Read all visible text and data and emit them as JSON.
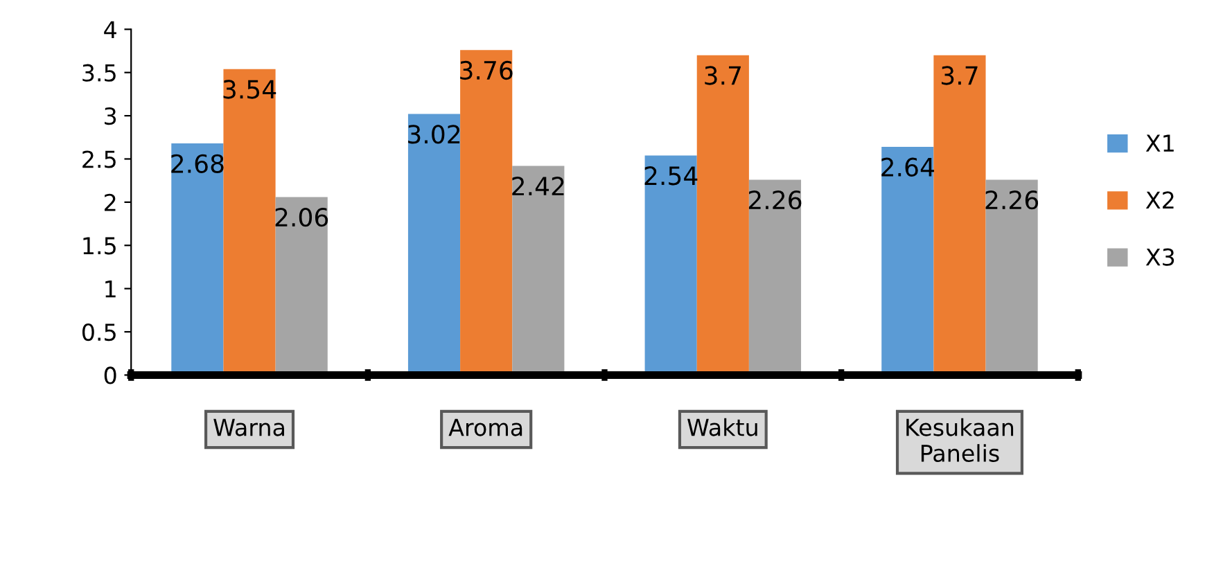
{
  "chart_data": {
    "type": "bar",
    "categories": [
      "Warna",
      "Aroma",
      "Waktu",
      "Kesukaan\nPanelis"
    ],
    "series": [
      {
        "name": "X1",
        "color": "#5b9bd5",
        "values": [
          2.68,
          3.02,
          2.54,
          2.64
        ]
      },
      {
        "name": "X2",
        "color": "#ed7d31",
        "values": [
          3.54,
          3.76,
          3.7,
          3.7
        ]
      },
      {
        "name": "X3",
        "color": "#a5a5a5",
        "values": [
          2.06,
          2.42,
          2.26,
          2.26
        ]
      }
    ],
    "ylim": [
      0,
      4
    ],
    "yticks": [
      0,
      0.5,
      1,
      1.5,
      2,
      2.5,
      3,
      3.5,
      4
    ],
    "grid": false,
    "legend": "right",
    "data_labels": true
  }
}
